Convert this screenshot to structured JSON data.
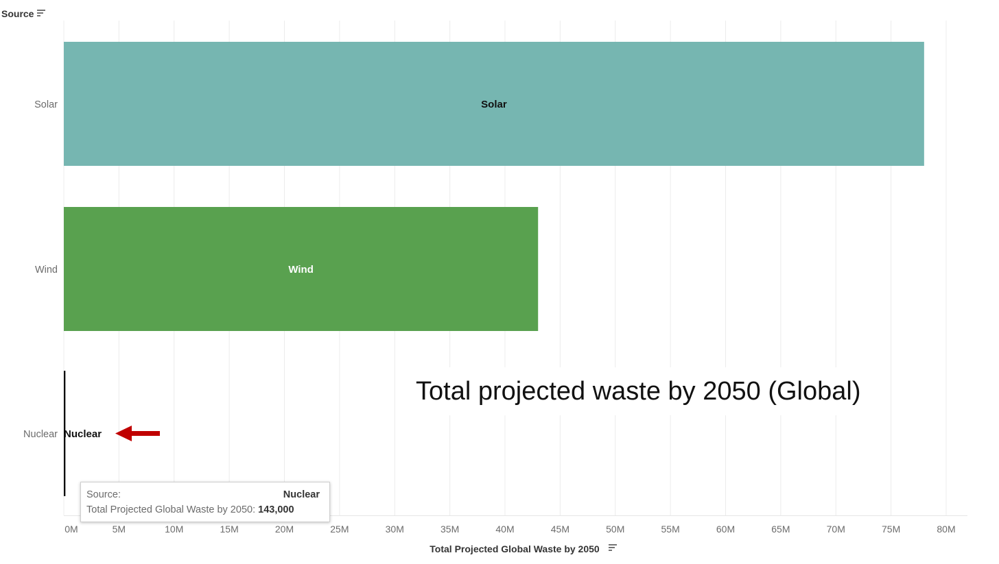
{
  "chart_data": {
    "type": "bar",
    "orientation": "horizontal",
    "row_header": "Source",
    "categories": [
      "Solar",
      "Wind",
      "Nuclear"
    ],
    "values": [
      78000000,
      43000000,
      143000
    ],
    "bar_labels": [
      "Solar",
      "Wind",
      "Nuclear"
    ],
    "colors": [
      "#76b6b1",
      "#59a14f",
      "#000000"
    ],
    "xlabel": "Total Projected Global Waste by 2050",
    "xlim": [
      0,
      80000000
    ],
    "xticks": [
      0,
      5000000,
      10000000,
      15000000,
      20000000,
      25000000,
      30000000,
      35000000,
      40000000,
      45000000,
      50000000,
      55000000,
      60000000,
      65000000,
      70000000,
      75000000,
      80000000
    ],
    "xtick_labels": [
      "0M",
      "5M",
      "10M",
      "15M",
      "20M",
      "25M",
      "30M",
      "35M",
      "40M",
      "45M",
      "50M",
      "55M",
      "60M",
      "65M",
      "70M",
      "75M",
      "80M"
    ],
    "grid": true,
    "annotation": "Total projected waste by 2050 (Global)",
    "arrow_color": "#c00000"
  },
  "tooltip": {
    "source_label": "Source:",
    "source_value": "Nuclear",
    "waste_label": "Total Projected Global Waste by 2050:",
    "waste_value": "143,000"
  }
}
